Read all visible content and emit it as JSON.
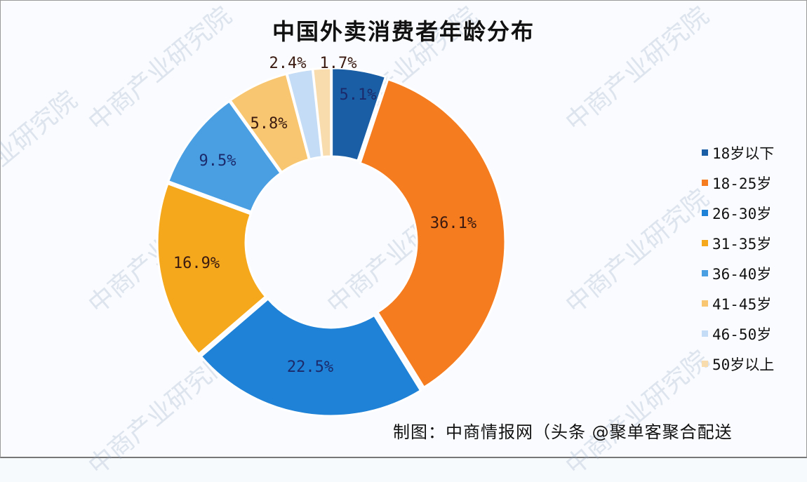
{
  "title": "中国外卖消费者年龄分布",
  "source": "制图：中商情报网（头条 @聚单客聚合配送",
  "watermark": "中商产业研究院",
  "legend": [
    {
      "label": "18岁以下",
      "color": "#1a5fa6"
    },
    {
      "label": "18-25岁",
      "color": "#f57c1f"
    },
    {
      "label": "26-30岁",
      "color": "#1f82d6"
    },
    {
      "label": "31-35岁",
      "color": "#f5a81c"
    },
    {
      "label": "36-40岁",
      "color": "#4a9fe3"
    },
    {
      "label": "41-45岁",
      "color": "#f8c670"
    },
    {
      "label": "46-50岁",
      "color": "#c4dcf5"
    },
    {
      "label": "50岁以上",
      "color": "#f9dcae"
    }
  ],
  "labels": [
    "5.1%",
    "36.1%",
    "22.5%",
    "16.9%",
    "9.5%",
    "5.8%",
    "2.4%",
    "1.7%"
  ],
  "chart_data": {
    "type": "pie",
    "subtype": "donut",
    "title": "中国外卖消费者年龄分布",
    "categories": [
      "18岁以下",
      "18-25岁",
      "26-30岁",
      "31-35岁",
      "36-40岁",
      "41-45岁",
      "46-50岁",
      "50岁以上"
    ],
    "values": [
      5.1,
      36.1,
      22.5,
      16.9,
      9.5,
      5.8,
      2.4,
      1.7
    ],
    "unit": "%",
    "legend_position": "right",
    "start_angle": "12 o'clock, clockwise"
  }
}
